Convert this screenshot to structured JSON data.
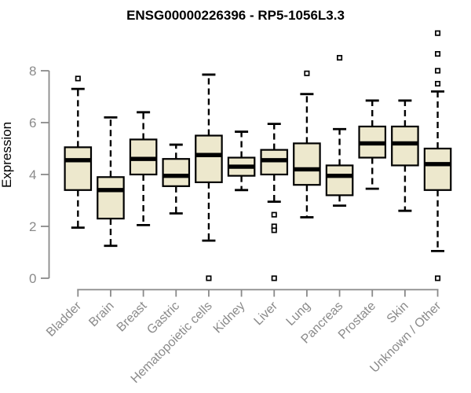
{
  "chart_data": {
    "type": "boxplot",
    "title": "ENSG00000226396 - RP5-1056L3.3",
    "ylabel": "Expression",
    "xlabel": "",
    "ylim": [
      0,
      9.6
    ],
    "yticks": [
      0,
      2,
      4,
      6,
      8
    ],
    "grid": false,
    "legend": false,
    "categories": [
      "Bladder",
      "Brain",
      "Breast",
      "Gastric",
      "Hematopoietic cells",
      "Kidney",
      "Liver",
      "Lung",
      "Pancreas",
      "Prostate",
      "Skin",
      "Unknown / Other"
    ],
    "boxes": [
      {
        "category": "Bladder",
        "whisker_low": 1.95,
        "q1": 3.4,
        "median": 4.55,
        "q3": 5.05,
        "whisker_high": 7.3,
        "outliers": [
          7.7
        ]
      },
      {
        "category": "Brain",
        "whisker_low": 1.25,
        "q1": 2.3,
        "median": 3.4,
        "q3": 3.9,
        "whisker_high": 6.2,
        "outliers": []
      },
      {
        "category": "Breast",
        "whisker_low": 2.05,
        "q1": 4.0,
        "median": 4.6,
        "q3": 5.35,
        "whisker_high": 6.4,
        "outliers": []
      },
      {
        "category": "Gastric",
        "whisker_low": 2.5,
        "q1": 3.55,
        "median": 3.95,
        "q3": 4.6,
        "whisker_high": 5.15,
        "outliers": []
      },
      {
        "category": "Hematopoietic cells",
        "whisker_low": 1.45,
        "q1": 3.7,
        "median": 4.75,
        "q3": 5.5,
        "whisker_high": 7.85,
        "outliers": [
          0
        ]
      },
      {
        "category": "Kidney",
        "whisker_low": 3.4,
        "q1": 3.95,
        "median": 4.3,
        "q3": 4.65,
        "whisker_high": 5.65,
        "outliers": []
      },
      {
        "category": "Liver",
        "whisker_low": 2.95,
        "q1": 4.0,
        "median": 4.55,
        "q3": 4.95,
        "whisker_high": 5.95,
        "outliers": [
          2.45,
          2.0,
          1.85,
          0
        ]
      },
      {
        "category": "Lung",
        "whisker_low": 2.35,
        "q1": 3.6,
        "median": 4.2,
        "q3": 5.2,
        "whisker_high": 7.1,
        "outliers": [
          7.9
        ]
      },
      {
        "category": "Pancreas",
        "whisker_low": 2.8,
        "q1": 3.2,
        "median": 3.95,
        "q3": 4.35,
        "whisker_high": 5.75,
        "outliers": [
          8.5
        ]
      },
      {
        "category": "Prostate",
        "whisker_low": 3.45,
        "q1": 4.65,
        "median": 5.2,
        "q3": 5.85,
        "whisker_high": 6.85,
        "outliers": []
      },
      {
        "category": "Skin",
        "whisker_low": 2.6,
        "q1": 4.35,
        "median": 5.2,
        "q3": 5.85,
        "whisker_high": 6.85,
        "outliers": []
      },
      {
        "category": "Unknown / Other",
        "whisker_low": 1.05,
        "q1": 3.4,
        "median": 4.4,
        "q3": 5.0,
        "whisker_high": 7.2,
        "outliers": [
          9.45,
          8.65,
          8.0,
          7.5,
          0
        ]
      }
    ],
    "colors": {
      "box_fill": "#EDE8CD",
      "box_border": "#000000",
      "median": "#000000",
      "whisker": "#000000",
      "outlier_border": "#000000",
      "outlier_fill": "#FFFFFF",
      "axis": "#8A8A8A",
      "tick_text": "#8A8A8A",
      "title_text": "#000000",
      "background": "#FFFFFF"
    }
  }
}
